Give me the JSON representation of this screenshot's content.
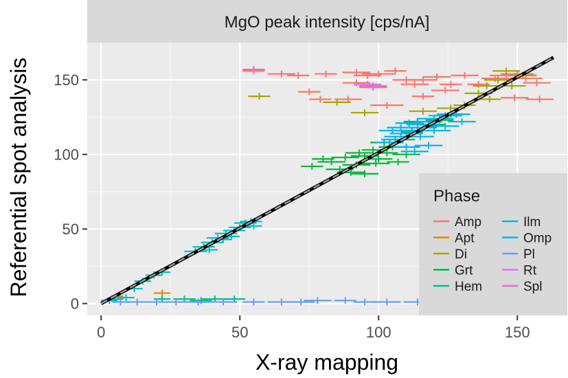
{
  "chart_data": {
    "type": "scatter",
    "title": "",
    "facet_label": "MgO peak intensity [cps/nA]",
    "xlabel": "X-ray mapping",
    "ylabel": "Referential spot analysis",
    "xlim": [
      -5,
      168
    ],
    "ylim": [
      -8,
      175
    ],
    "x_ticks": [
      0,
      50,
      100,
      150
    ],
    "y_ticks": [
      0,
      50,
      100,
      150
    ],
    "x_tick_labels": [
      "0",
      "50",
      "100",
      "150"
    ],
    "y_tick_labels": [
      "0",
      "50",
      "100",
      "150"
    ],
    "grid": true,
    "legend": {
      "title": "Phase",
      "position": "bottom-right-inside"
    },
    "reference_line": {
      "x": [
        0,
        163
      ],
      "y": [
        0,
        165
      ],
      "style": "black solid with grey dashed overlay"
    },
    "series": [
      {
        "name": "Amp",
        "color": "#F8766D",
        "points": [
          [
            55,
            156,
            4
          ],
          [
            65,
            154,
            5
          ],
          [
            71,
            153,
            4
          ],
          [
            81,
            154,
            4
          ],
          [
            92,
            155,
            5
          ],
          [
            96,
            153,
            5
          ],
          [
            100,
            154,
            6
          ],
          [
            106,
            156,
            4
          ],
          [
            110,
            150,
            5
          ],
          [
            113,
            147,
            5
          ],
          [
            116,
            150,
            5
          ],
          [
            121,
            152,
            5
          ],
          [
            126,
            147,
            4
          ],
          [
            131,
            153,
            5
          ],
          [
            136,
            147,
            4
          ],
          [
            142,
            151,
            5
          ],
          [
            146,
            153,
            6
          ],
          [
            150,
            154,
            6
          ],
          [
            153,
            151,
            6
          ],
          [
            157,
            148,
            5
          ],
          [
            149,
            138,
            5
          ],
          [
            158,
            137,
            5
          ],
          [
            75,
            142,
            4
          ],
          [
            79,
            137,
            4
          ],
          [
            89,
            137,
            5
          ],
          [
            103,
            133,
            6
          ],
          [
            116,
            139,
            4
          ],
          [
            124,
            143,
            5
          ],
          [
            98,
            146,
            5
          ],
          [
            92,
            148,
            5
          ]
        ]
      },
      {
        "name": "Apt",
        "color": "#E58700",
        "points": [
          [
            6,
            5,
            2
          ],
          [
            22,
            7,
            3
          ]
        ]
      },
      {
        "name": "Di",
        "color": "#A3A500",
        "points": [
          [
            57,
            139,
            4
          ],
          [
            85,
            135,
            5
          ],
          [
            95,
            128,
            5
          ],
          [
            116,
            129,
            5
          ],
          [
            126,
            131,
            5
          ],
          [
            131,
            133,
            4
          ],
          [
            136,
            141,
            5
          ],
          [
            139,
            146,
            5
          ],
          [
            143,
            150,
            5
          ],
          [
            146,
            156,
            5
          ],
          [
            152,
            153,
            5
          ],
          [
            148,
            146,
            5
          ],
          [
            140,
            137,
            4
          ]
        ]
      },
      {
        "name": "Grt",
        "color": "#00BA38",
        "points": [
          [
            76,
            92,
            4
          ],
          [
            83,
            95,
            5
          ],
          [
            88,
            98,
            5
          ],
          [
            92,
            93,
            5
          ],
          [
            95,
            99,
            5
          ],
          [
            98,
            103,
            4
          ],
          [
            100,
            97,
            5
          ],
          [
            103,
            101,
            4
          ],
          [
            86,
            90,
            5
          ],
          [
            90,
            88,
            5
          ],
          [
            95,
            87,
            5
          ],
          [
            105,
            105,
            5
          ],
          [
            108,
            110,
            5
          ],
          [
            112,
            115,
            4
          ],
          [
            116,
            118,
            5
          ],
          [
            119,
            120,
            5
          ],
          [
            122,
            123,
            5
          ],
          [
            125,
            126,
            5
          ],
          [
            128,
            127,
            5
          ],
          [
            114,
            122,
            5
          ],
          [
            102,
            108,
            5
          ],
          [
            99,
            94,
            5
          ],
          [
            93,
            101,
            5
          ],
          [
            80,
            97,
            4
          ],
          [
            110,
            100,
            5
          ],
          [
            107,
            95,
            4
          ]
        ]
      },
      {
        "name": "Hem",
        "color": "#00C08B",
        "points": [
          [
            22,
            3,
            3
          ],
          [
            30,
            3,
            4
          ],
          [
            41,
            3,
            5
          ],
          [
            48,
            3,
            4
          ],
          [
            36,
            2,
            4
          ]
        ]
      },
      {
        "name": "Ilm",
        "color": "#00BFC4",
        "points": [
          [
            3,
            2,
            3
          ],
          [
            5,
            3,
            3
          ],
          [
            9,
            4,
            3
          ],
          [
            12,
            10,
            3
          ],
          [
            15,
            15,
            3
          ],
          [
            19,
            19,
            3
          ],
          [
            22,
            21,
            3
          ],
          [
            34,
            35,
            4
          ],
          [
            37,
            38,
            4
          ],
          [
            40,
            41,
            4
          ],
          [
            42,
            44,
            4
          ],
          [
            45,
            47,
            4
          ],
          [
            48,
            49,
            4
          ],
          [
            50,
            51,
            4
          ],
          [
            52,
            54,
            4
          ],
          [
            54,
            55,
            4
          ],
          [
            55,
            52,
            3
          ],
          [
            39,
            36,
            3
          ],
          [
            44,
            43,
            3
          ],
          [
            47,
            45,
            3
          ]
        ]
      },
      {
        "name": "Omp",
        "color": "#00B4F0",
        "points": [
          [
            104,
            108,
            5
          ],
          [
            106,
            110,
            5
          ],
          [
            108,
            112,
            6
          ],
          [
            110,
            114,
            6
          ],
          [
            112,
            116,
            5
          ],
          [
            114,
            118,
            6
          ],
          [
            116,
            120,
            6
          ],
          [
            118,
            122,
            5
          ],
          [
            120,
            124,
            6
          ],
          [
            122,
            124,
            5
          ],
          [
            124,
            126,
            6
          ],
          [
            126,
            127,
            5
          ],
          [
            128,
            127,
            5
          ],
          [
            118,
            106,
            5
          ],
          [
            115,
            112,
            5
          ],
          [
            110,
            105,
            5
          ],
          [
            113,
            102,
            5
          ],
          [
            120,
            116,
            6
          ],
          [
            108,
            118,
            5
          ],
          [
            111,
            121,
            5
          ],
          [
            124,
            119,
            5
          ],
          [
            130,
            122,
            5
          ],
          [
            105,
            116,
            5
          ]
        ]
      },
      {
        "name": "Pl",
        "color": "#619CFF",
        "points": [
          [
            7,
            1,
            3
          ],
          [
            13,
            1,
            4
          ],
          [
            20,
            1,
            3
          ],
          [
            27,
            1,
            4
          ],
          [
            35,
            1,
            4
          ],
          [
            44,
            1,
            5
          ],
          [
            55,
            1,
            4
          ],
          [
            65,
            1,
            5
          ],
          [
            72,
            1,
            5
          ],
          [
            78,
            2,
            5
          ],
          [
            88,
            2,
            4
          ],
          [
            95,
            1,
            4
          ],
          [
            103,
            1,
            5
          ],
          [
            114,
            1,
            5
          ],
          [
            119,
            2,
            4
          ],
          [
            126,
            1,
            4
          ],
          [
            136,
            1,
            6
          ]
        ]
      },
      {
        "name": "Rt",
        "color": "#DB72FB",
        "points": [
          [
            96,
            147,
            5
          ]
        ]
      },
      {
        "name": "Spl",
        "color": "#FF61C3",
        "points": [
          [
            55,
            157,
            4
          ],
          [
            98,
            145,
            5
          ]
        ]
      }
    ]
  }
}
